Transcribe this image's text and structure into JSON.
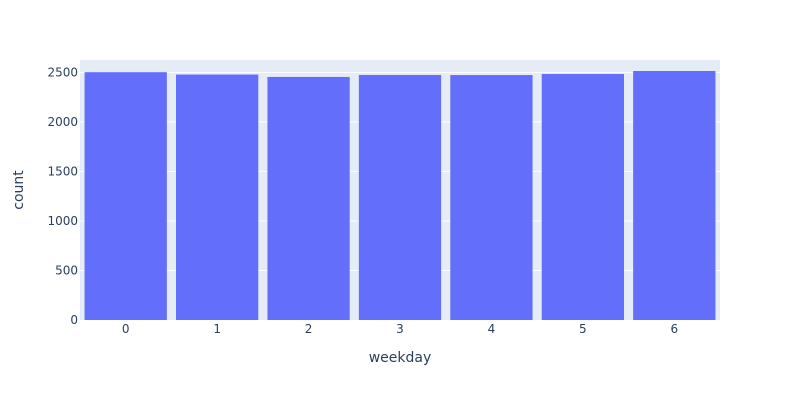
{
  "chart_data": {
    "type": "bar",
    "title": "",
    "xlabel": "weekday",
    "ylabel": "count",
    "categories": [
      "0",
      "1",
      "2",
      "3",
      "4",
      "5",
      "6"
    ],
    "values": [
      2502,
      2478,
      2454,
      2474,
      2473,
      2484,
      2514
    ],
    "ylim": [
      0,
      2625
    ],
    "yticks": [
      0,
      500,
      1000,
      1500,
      2000,
      2500
    ],
    "grid": true,
    "legend": "none",
    "colors": {
      "bar": "#636efa",
      "plot_background": "#e5ecf6",
      "gridline": "#ffffff",
      "text": "#2a3f5f"
    }
  }
}
